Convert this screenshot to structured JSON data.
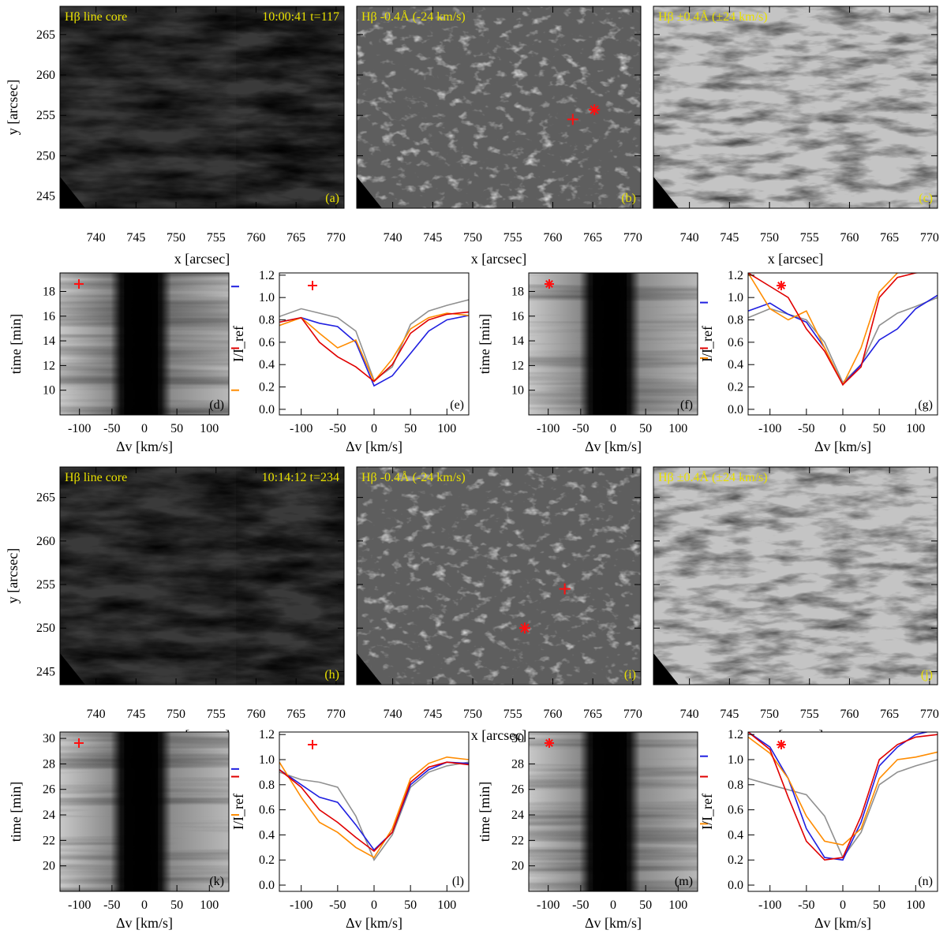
{
  "figure": {
    "rows": [
      {
        "image_panels": [
          {
            "label": "(a)",
            "title": "Hβ line core",
            "right_title": "10:00:41 t=117",
            "kind": "core"
          },
          {
            "label": "(b)",
            "title": "Hβ -0.4Å (-24 km/s)",
            "right_title": "",
            "kind": "blue"
          },
          {
            "label": "(c)",
            "title": "Hβ ±0.4Å (±24 km/s)",
            "right_title": "",
            "kind": "pm"
          }
        ],
        "markers_b": {
          "plus": [
            762.5,
            254.5
          ],
          "star": [
            765.2,
            255.7
          ]
        },
        "xt_panels": [
          {
            "label": "(d)",
            "marker": "plus",
            "tlim": [
              8,
              19.5
            ],
            "ticks": [
              10,
              12,
              14,
              16,
              18
            ],
            "side_marks": {
              "blue": 18.4,
              "red": 13.4,
              "orange": 10.0
            }
          },
          {
            "label": "(f)",
            "marker": "star",
            "tlim": [
              8,
              19.5
            ],
            "ticks": [
              10,
              12,
              14,
              16,
              18
            ],
            "side_marks": {
              "blue": 17.1,
              "red": 13.4,
              "orange": 12.6
            }
          }
        ],
        "profile_panels": [
          {
            "label": "(e)",
            "marker": "plus"
          },
          {
            "label": "(g)",
            "marker": "star"
          }
        ]
      },
      {
        "image_panels": [
          {
            "label": "(h)",
            "title": "Hβ line core",
            "right_title": "10:14:12 t=234",
            "kind": "core"
          },
          {
            "label": "(i)",
            "title": "Hβ -0.4Å (-24 km/s)",
            "right_title": "",
            "kind": "blue"
          },
          {
            "label": "(j)",
            "title": "Hβ ±0.4Å (±24 km/s)",
            "right_title": "",
            "kind": "pm"
          }
        ],
        "markers_b": {
          "plus": [
            761.5,
            254.5
          ],
          "star": [
            756.5,
            250.0
          ]
        },
        "xt_panels": [
          {
            "label": "(k)",
            "marker": "plus",
            "tlim": [
              18,
              30.5
            ],
            "ticks": [
              20,
              22,
              24,
              26,
              28,
              30
            ],
            "side_marks": {
              "blue": 27.6,
              "red": 27.0,
              "orange": 24.0
            }
          },
          {
            "label": "(m)",
            "marker": "star",
            "tlim": [
              18,
              30.5
            ],
            "ticks": [
              20,
              22,
              24,
              26,
              28,
              30
            ],
            "side_marks": {
              "blue": 28.6,
              "red": 27.0,
              "orange": 23.3
            }
          }
        ],
        "profile_panels": [
          {
            "label": "(l)",
            "marker": "plus"
          },
          {
            "label": "(n)",
            "marker": "star"
          }
        ]
      }
    ],
    "axes": {
      "x_arcsec_label": "x [arcsec]",
      "y_arcsec_label": "y [arcsec]",
      "dv_label": "Δv [km/s]",
      "time_label": "time [min]",
      "intensity_label": "I/I_ref",
      "x_ticks": [
        740,
        745,
        750,
        755,
        760,
        765,
        770
      ],
      "y_ticks": [
        245,
        250,
        255,
        260,
        265
      ],
      "xlim": [
        735.5,
        771
      ],
      "ylim": [
        243.5,
        268.5
      ],
      "dv_ticks": [
        -100,
        -50,
        0,
        50,
        100
      ],
      "dv_lim": [
        -130,
        130
      ],
      "i_ticks": [
        0.0,
        0.2,
        0.4,
        0.6,
        0.8,
        1.0,
        1.2
      ],
      "i_lim": [
        -0.05,
        1.22
      ]
    },
    "colors": {
      "blue": "#1f1fe0",
      "red": "#e00000",
      "orange": "#ff8c00",
      "gray": "#909090",
      "label_yellow": "#e8e000",
      "marker_red": "#ff1010"
    }
  },
  "chart_data": [
    {
      "type": "line",
      "panel": "(e)",
      "xlabel": "Δv [km/s]",
      "ylabel": "I/I_ref",
      "ylim": [
        -0.05,
        1.22
      ],
      "x": [
        -130,
        -100,
        -75,
        -50,
        -25,
        0,
        25,
        50,
        75,
        100,
        130
      ],
      "series": [
        {
          "color": "gray",
          "values": [
            0.83,
            0.9,
            0.86,
            0.82,
            0.7,
            0.26,
            0.38,
            0.76,
            0.88,
            0.93,
            0.98
          ]
        },
        {
          "color": "blue",
          "values": [
            0.78,
            0.82,
            0.77,
            0.74,
            0.6,
            0.21,
            0.3,
            0.5,
            0.7,
            0.8,
            0.84
          ]
        },
        {
          "color": "red",
          "values": [
            0.78,
            0.82,
            0.6,
            0.47,
            0.38,
            0.25,
            0.4,
            0.68,
            0.8,
            0.85,
            0.87
          ]
        },
        {
          "color": "orange",
          "values": [
            0.75,
            0.82,
            0.68,
            0.55,
            0.62,
            0.25,
            0.45,
            0.72,
            0.82,
            0.86,
            0.84
          ]
        }
      ]
    },
    {
      "type": "line",
      "panel": "(g)",
      "xlabel": "Δv [km/s]",
      "ylabel": "I/I_ref",
      "ylim": [
        -0.05,
        1.22
      ],
      "x": [
        -130,
        -100,
        -75,
        -50,
        -25,
        0,
        25,
        50,
        75,
        100,
        130
      ],
      "series": [
        {
          "color": "gray",
          "values": [
            0.82,
            0.9,
            0.85,
            0.8,
            0.6,
            0.24,
            0.4,
            0.75,
            0.86,
            0.92,
            1.0
          ]
        },
        {
          "color": "blue",
          "values": [
            0.88,
            0.95,
            0.85,
            0.78,
            0.55,
            0.22,
            0.4,
            0.62,
            0.72,
            0.9,
            1.02
          ]
        },
        {
          "color": "red",
          "values": [
            1.22,
            1.1,
            1.0,
            0.72,
            0.52,
            0.22,
            0.38,
            1.0,
            1.18,
            1.22,
            1.24
          ]
        },
        {
          "color": "orange",
          "values": [
            1.22,
            0.9,
            0.8,
            0.88,
            0.55,
            0.22,
            0.55,
            1.05,
            1.22,
            1.24,
            1.24
          ]
        }
      ]
    },
    {
      "type": "line",
      "panel": "(l)",
      "xlabel": "Δv [km/s]",
      "ylabel": "I/I_ref",
      "ylim": [
        -0.05,
        1.22
      ],
      "x": [
        -130,
        -100,
        -75,
        -50,
        -25,
        0,
        25,
        50,
        75,
        100,
        130
      ],
      "series": [
        {
          "color": "gray",
          "values": [
            0.9,
            0.84,
            0.82,
            0.78,
            0.55,
            0.2,
            0.4,
            0.78,
            0.9,
            0.95,
            0.98
          ]
        },
        {
          "color": "blue",
          "values": [
            0.92,
            0.8,
            0.7,
            0.66,
            0.48,
            0.28,
            0.42,
            0.8,
            0.92,
            0.98,
            0.97
          ]
        },
        {
          "color": "red",
          "values": [
            0.92,
            0.78,
            0.6,
            0.5,
            0.38,
            0.27,
            0.42,
            0.82,
            0.94,
            0.98,
            0.96
          ]
        },
        {
          "color": "orange",
          "values": [
            0.98,
            0.7,
            0.5,
            0.42,
            0.3,
            0.22,
            0.45,
            0.85,
            0.97,
            1.02,
            1.0
          ]
        }
      ]
    },
    {
      "type": "line",
      "panel": "(n)",
      "xlabel": "Δv [km/s]",
      "ylabel": "I/I_ref",
      "ylim": [
        -0.05,
        1.22
      ],
      "x": [
        -130,
        -100,
        -75,
        -50,
        -25,
        0,
        25,
        50,
        75,
        100,
        130
      ],
      "series": [
        {
          "color": "gray",
          "values": [
            0.85,
            0.8,
            0.76,
            0.72,
            0.55,
            0.22,
            0.42,
            0.8,
            0.9,
            0.95,
            1.0
          ]
        },
        {
          "color": "blue",
          "values": [
            1.22,
            1.1,
            0.85,
            0.45,
            0.22,
            0.2,
            0.5,
            0.95,
            1.1,
            1.2,
            1.24
          ]
        },
        {
          "color": "red",
          "values": [
            1.22,
            1.08,
            0.7,
            0.35,
            0.2,
            0.22,
            0.55,
            1.0,
            1.12,
            1.18,
            1.2
          ]
        },
        {
          "color": "orange",
          "values": [
            1.18,
            1.05,
            0.85,
            0.55,
            0.35,
            0.32,
            0.45,
            0.85,
            1.0,
            1.02,
            1.06
          ]
        }
      ]
    }
  ]
}
